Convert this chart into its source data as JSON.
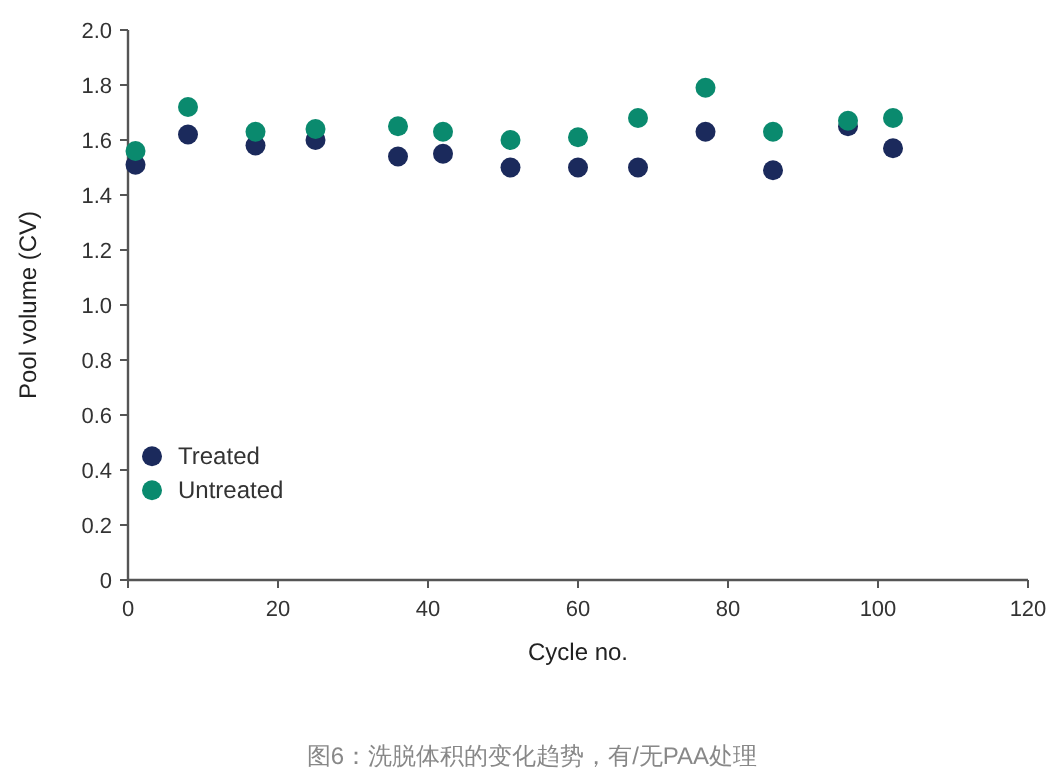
{
  "chart_data": {
    "type": "scatter",
    "xlabel": "Cycle no.",
    "ylabel": "Pool volume (CV)",
    "x": [
      1,
      8,
      17,
      25,
      36,
      42,
      51,
      60,
      68,
      77,
      86,
      96,
      102
    ],
    "series": [
      {
        "name": "Treated",
        "color": "#1b2a5c",
        "values": [
          1.51,
          1.62,
          1.58,
          1.6,
          1.54,
          1.55,
          1.5,
          1.5,
          1.5,
          1.63,
          1.49,
          1.65,
          1.57
        ]
      },
      {
        "name": "Untreated",
        "color": "#0a8a6e",
        "values": [
          1.56,
          1.72,
          1.63,
          1.64,
          1.65,
          1.63,
          1.6,
          1.61,
          1.68,
          1.79,
          1.63,
          1.67,
          1.68
        ]
      }
    ],
    "xlim": [
      0,
      120
    ],
    "xticks": [
      0,
      20,
      40,
      60,
      80,
      100,
      120
    ],
    "ylim": [
      0,
      2.0
    ],
    "yticks": [
      {
        "value": 0,
        "label": "0"
      },
      {
        "value": 0.2,
        "label": "0.2"
      },
      {
        "value": 0.4,
        "label": "0.4"
      },
      {
        "value": 0.6,
        "label": "0.6"
      },
      {
        "value": 0.8,
        "label": "0.8"
      },
      {
        "value": 1.0,
        "label": "1.0"
      },
      {
        "value": 1.2,
        "label": "1.2"
      },
      {
        "value": 1.4,
        "label": "1.4"
      },
      {
        "value": 1.6,
        "label": "1.6"
      },
      {
        "value": 1.8,
        "label": "1.8"
      },
      {
        "value": 2.0,
        "label": "2.0"
      }
    ],
    "marker": "circle",
    "grid": false,
    "legend": "left",
    "annotations": [
      "图6：洗脱体积的变化趋势，有/无PAA处理"
    ]
  }
}
